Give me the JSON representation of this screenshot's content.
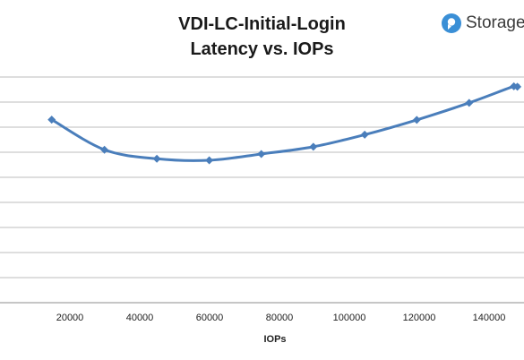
{
  "brand": {
    "name": "Storage",
    "icon": "storage-logo-icon",
    "accent": "#3a8fd6"
  },
  "chart_data": {
    "type": "line",
    "title": "VDI-LC-Initial-Login Latency vs. IOPs",
    "title_lines": [
      "VDI-LC-Initial-Login",
      "Latency vs. IOPs"
    ],
    "xlabel": "IOPs",
    "ylabel": "",
    "xlim": [
      0,
      150000
    ],
    "x_ticks": [
      20000,
      40000,
      60000,
      80000,
      100000,
      120000,
      140000
    ],
    "x_tick_labels": [
      "20000",
      "40000",
      "60000",
      "80000",
      "100000",
      "120000",
      "140000"
    ],
    "ylim": [
      0,
      9
    ],
    "y_gridlines": 9,
    "y_tick_labels_visible": false,
    "grid": true,
    "legend": "none",
    "series": [
      {
        "color": "#4a7ebb",
        "x": [
          14800,
          29900,
          44900,
          59900,
          74800,
          89700,
          104400,
          119300,
          134300,
          147100,
          148100
        ],
        "y": [
          7.3,
          6.1,
          5.74,
          5.68,
          5.93,
          6.22,
          6.7,
          7.29,
          7.97,
          8.63,
          8.61
        ]
      }
    ]
  }
}
